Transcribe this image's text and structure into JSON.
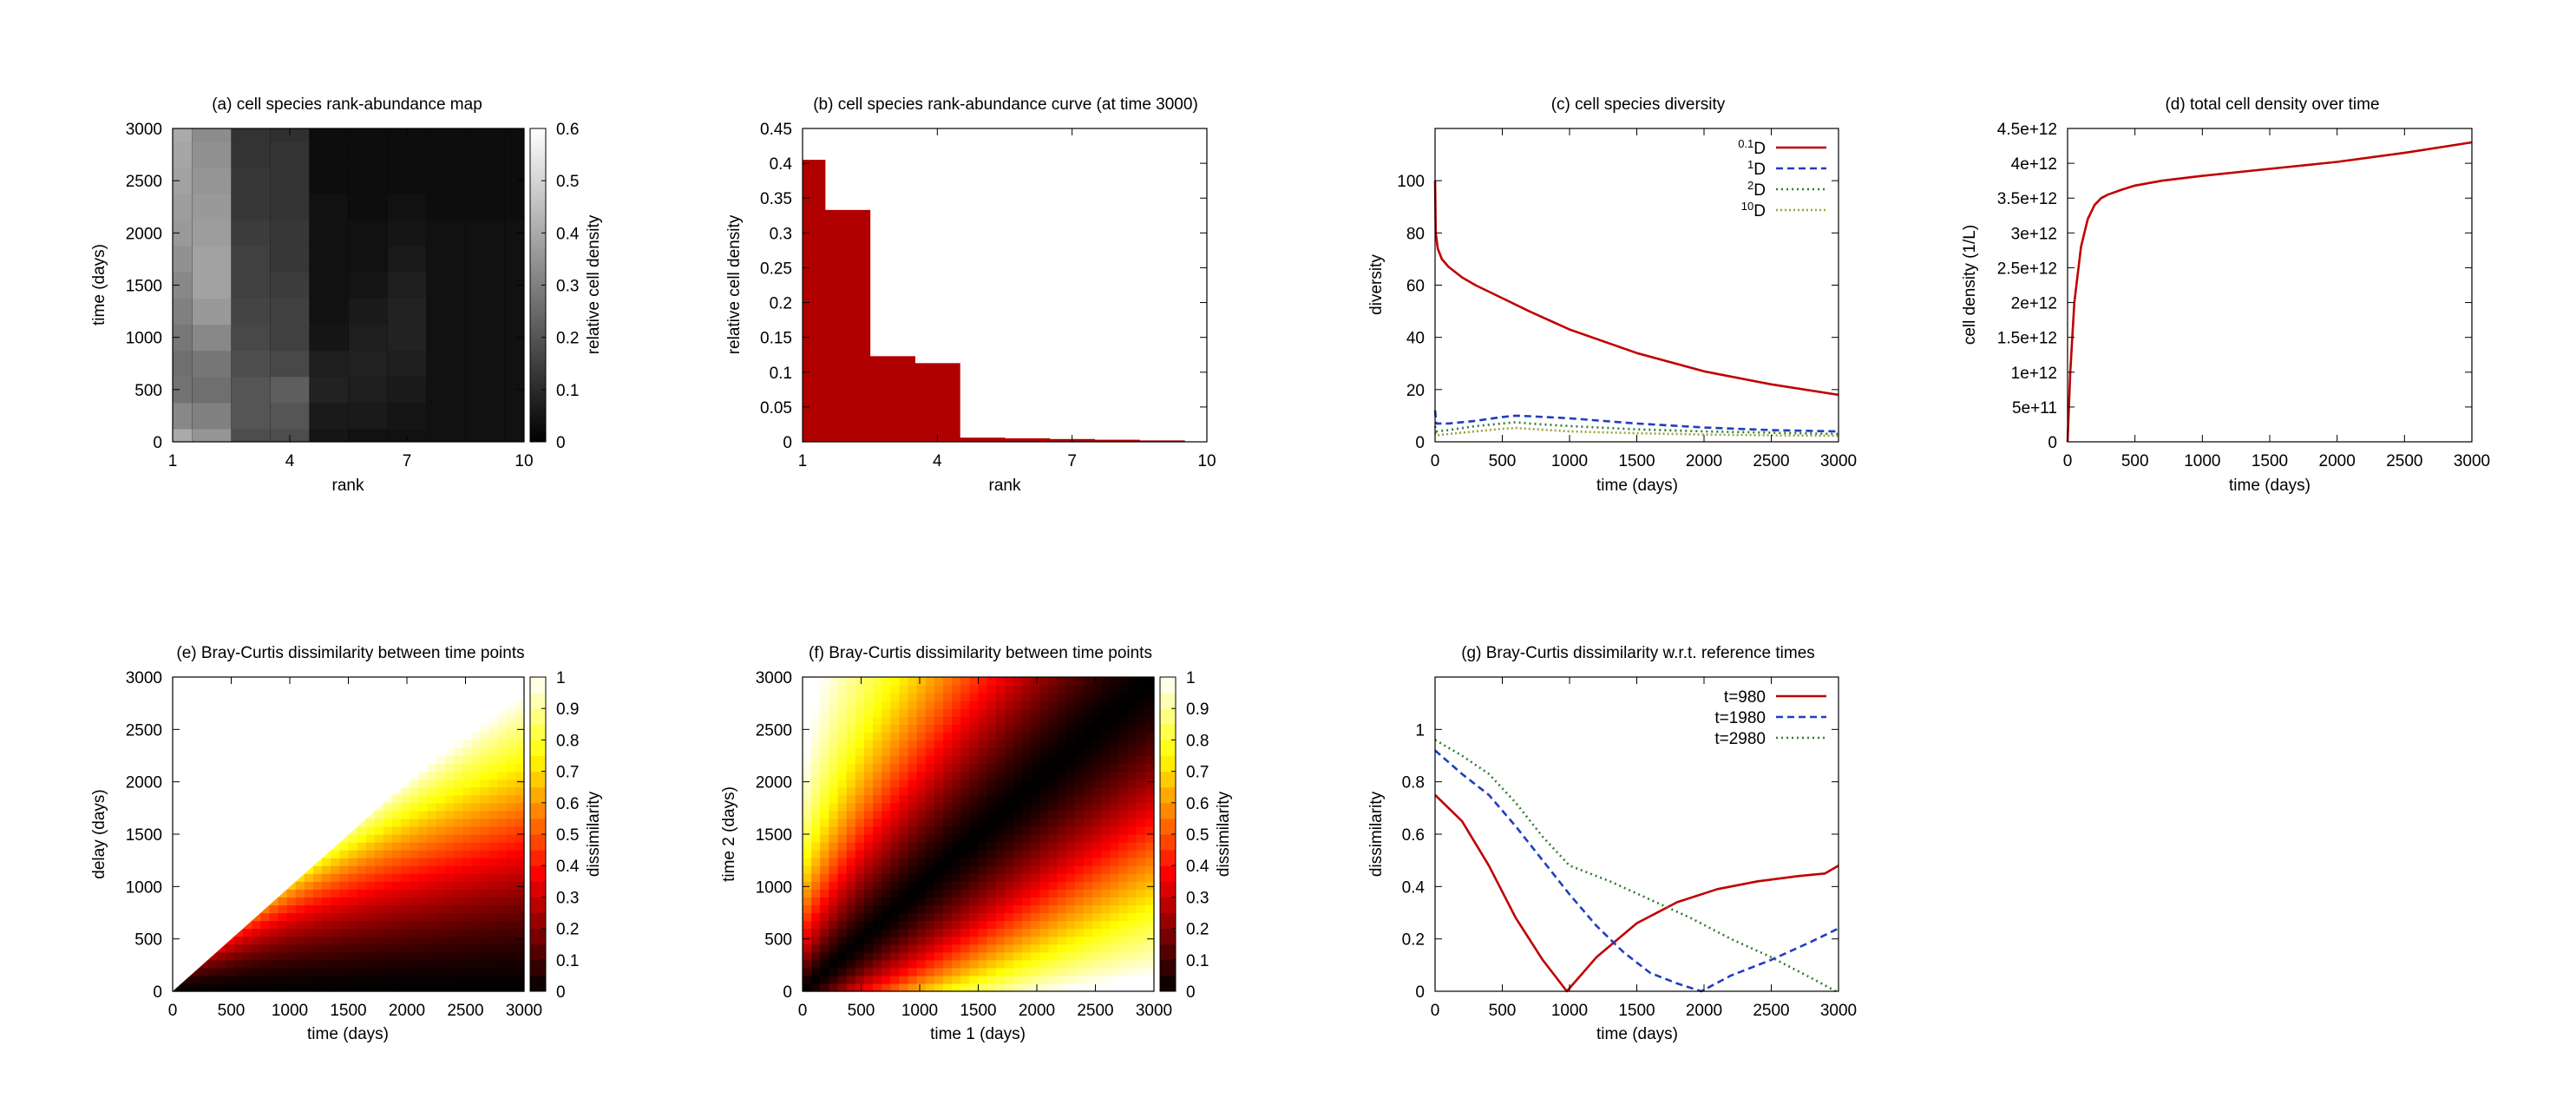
{
  "chart_data": [
    {
      "id": "a",
      "type": "heatmap",
      "title": "(a) cell species rank-abundance map",
      "xlabel": "rank",
      "ylabel": "time (days)",
      "colorbar_label": "relative cell density",
      "colormap": "gray",
      "xlim": [
        1,
        10
      ],
      "ylim": [
        0,
        3000
      ],
      "x_ticks": [
        1,
        4,
        7,
        10
      ],
      "y_ticks": [
        0,
        500,
        1000,
        1500,
        2000,
        2500,
        3000
      ],
      "clim": [
        0,
        0.6
      ],
      "colorbar_ticks": [
        0,
        0.1,
        0.2,
        0.3,
        0.4,
        0.5,
        0.6
      ],
      "time_rows": [
        0,
        250,
        500,
        750,
        1000,
        1250,
        1500,
        1750,
        2000,
        2250,
        2500,
        2750,
        3000
      ],
      "column_edges": [
        1,
        1.5,
        2.5,
        3.5,
        4.5,
        5.5,
        6.5,
        7.5,
        8.5,
        9.5,
        10
      ],
      "values": [
        [
          0.4,
          0.35,
          0.18,
          0.18,
          0.05,
          0.04,
          0.04,
          0.04,
          0.04,
          0.04
        ],
        [
          0.32,
          0.3,
          0.2,
          0.2,
          0.06,
          0.06,
          0.05,
          0.04,
          0.04,
          0.04
        ],
        [
          0.27,
          0.26,
          0.2,
          0.22,
          0.08,
          0.07,
          0.06,
          0.04,
          0.04,
          0.04
        ],
        [
          0.26,
          0.28,
          0.18,
          0.17,
          0.07,
          0.08,
          0.07,
          0.04,
          0.04,
          0.04
        ],
        [
          0.28,
          0.32,
          0.17,
          0.15,
          0.05,
          0.07,
          0.08,
          0.04,
          0.04,
          0.04
        ],
        [
          0.3,
          0.36,
          0.16,
          0.15,
          0.04,
          0.06,
          0.08,
          0.04,
          0.04,
          0.04
        ],
        [
          0.32,
          0.38,
          0.15,
          0.14,
          0.04,
          0.05,
          0.07,
          0.04,
          0.04,
          0.04
        ],
        [
          0.34,
          0.38,
          0.15,
          0.13,
          0.04,
          0.04,
          0.06,
          0.04,
          0.04,
          0.04
        ],
        [
          0.36,
          0.37,
          0.14,
          0.13,
          0.04,
          0.04,
          0.05,
          0.04,
          0.04,
          0.04
        ],
        [
          0.37,
          0.36,
          0.13,
          0.12,
          0.04,
          0.03,
          0.04,
          0.03,
          0.03,
          0.03
        ],
        [
          0.38,
          0.35,
          0.13,
          0.12,
          0.03,
          0.03,
          0.03,
          0.03,
          0.03,
          0.03
        ],
        [
          0.39,
          0.34,
          0.12,
          0.12,
          0.03,
          0.03,
          0.03,
          0.03,
          0.03,
          0.03
        ],
        [
          0.4,
          0.33,
          0.12,
          0.11,
          0.03,
          0.03,
          0.03,
          0.03,
          0.03,
          0.03
        ]
      ]
    },
    {
      "id": "b",
      "type": "bar",
      "title": "(b) cell species rank-abundance curve (at time 3000)",
      "xlabel": "rank",
      "ylabel": "relative cell density",
      "xlim": [
        1,
        10
      ],
      "ylim": [
        0,
        0.45
      ],
      "x_ticks": [
        1,
        4,
        7,
        10
      ],
      "y_ticks": [
        0,
        0.05,
        0.1,
        0.15,
        0.2,
        0.25,
        0.3,
        0.35,
        0.4,
        0.45
      ],
      "bar_color": "#b00000",
      "categories": [
        1,
        2,
        3,
        4,
        5,
        6,
        7,
        8,
        9
      ],
      "bar_edges": [
        1,
        1.5,
        2.5,
        3.5,
        4.5,
        5.5,
        6.5,
        7.5,
        8.5,
        9.5
      ],
      "values": [
        0.405,
        0.333,
        0.123,
        0.113,
        0.006,
        0.005,
        0.004,
        0.003,
        0.002
      ]
    },
    {
      "id": "c",
      "type": "line",
      "title": "(c) cell species diversity",
      "xlabel": "time (days)",
      "ylabel": "diversity",
      "xlim": [
        0,
        3000
      ],
      "ylim": [
        0,
        120
      ],
      "x_ticks": [
        0,
        500,
        1000,
        1500,
        2000,
        2500,
        3000
      ],
      "y_ticks": [
        0,
        20,
        40,
        60,
        80,
        100
      ],
      "legend_position": "top-right",
      "series": [
        {
          "label": "D",
          "sup": "0.1",
          "color": "#c00000",
          "dash": "",
          "x": [
            0,
            5,
            20,
            50,
            100,
            200,
            300,
            500,
            700,
            1000,
            1500,
            2000,
            2500,
            3000
          ],
          "y": [
            100,
            80,
            74,
            70,
            67,
            63,
            60,
            55,
            50,
            43,
            34,
            27,
            22,
            18
          ]
        },
        {
          "label": "D",
          "sup": "1",
          "color": "#1f3fbf",
          "dash": "8,5",
          "x": [
            0,
            10,
            100,
            300,
            500,
            600,
            700,
            1000,
            1500,
            2000,
            2500,
            3000
          ],
          "y": [
            12,
            7,
            7,
            8,
            9.5,
            10,
            9.8,
            9,
            7,
            5.5,
            4.5,
            4
          ]
        },
        {
          "label": "D",
          "sup": "2",
          "color": "#2e7d32",
          "dash": "2,4",
          "x": [
            0,
            10,
            100,
            300,
            500,
            600,
            700,
            1000,
            1500,
            2000,
            2500,
            3000
          ],
          "y": [
            6,
            4,
            4.5,
            6,
            7,
            7.5,
            7,
            6,
            4.8,
            4,
            3.5,
            3
          ]
        },
        {
          "label": "D",
          "sup": "10",
          "color": "#a0a040",
          "dash": "2,3",
          "x": [
            0,
            10,
            100,
            300,
            500,
            600,
            700,
            1000,
            1500,
            2000,
            2500,
            3000
          ],
          "y": [
            3.5,
            2.5,
            3,
            4,
            5,
            5.3,
            5,
            4,
            3.3,
            2.8,
            2.5,
            2.3
          ]
        }
      ]
    },
    {
      "id": "d",
      "type": "line",
      "title": "(d) total cell density over time",
      "xlabel": "time (days)",
      "ylabel": "cell density (1/L)",
      "xlim": [
        0,
        3000
      ],
      "ylim": [
        0,
        4500000000000.0
      ],
      "x_ticks": [
        0,
        500,
        1000,
        1500,
        2000,
        2500,
        3000
      ],
      "y_ticks": [
        0,
        500000000000.0,
        1000000000000.0,
        1500000000000.0,
        2000000000000.0,
        2500000000000.0,
        3000000000000.0,
        3500000000000.0,
        4000000000000.0,
        4500000000000.0
      ],
      "y_tick_labels": [
        "0",
        "5e+11",
        "1e+12",
        "1.5e+12",
        "2e+12",
        "2.5e+12",
        "3e+12",
        "3.5e+12",
        "4e+12",
        "4.5e+12"
      ],
      "series": [
        {
          "label": "total",
          "color": "#c00000",
          "x": [
            0,
            20,
            50,
            100,
            150,
            200,
            250,
            300,
            400,
            500,
            700,
            1000,
            1500,
            2000,
            2500,
            3000
          ],
          "y": [
            0,
            1000000000000.0,
            2000000000000.0,
            2800000000000.0,
            3200000000000.0,
            3400000000000.0,
            3500000000000.0,
            3550000000000.0,
            3620000000000.0,
            3680000000000.0,
            3750000000000.0,
            3820000000000.0,
            3920000000000.0,
            4020000000000.0,
            4150000000000.0,
            4300000000000.0
          ]
        }
      ]
    },
    {
      "id": "e",
      "type": "heatmap",
      "title": "(e) Bray-Curtis dissimilarity between time points",
      "xlabel": "time (days)",
      "ylabel": "delay (days)",
      "colorbar_label": "dissimilarity",
      "colormap": "hot",
      "xlim": [
        0,
        3000
      ],
      "ylim": [
        0,
        3000
      ],
      "x_ticks": [
        0,
        500,
        1000,
        1500,
        2000,
        2500,
        3000
      ],
      "y_ticks": [
        0,
        500,
        1000,
        1500,
        2000,
        2500,
        3000
      ],
      "clim": [
        0,
        1
      ],
      "colorbar_ticks": [
        0,
        0.1,
        0.2,
        0.3,
        0.4,
        0.5,
        0.6,
        0.7,
        0.8,
        0.9,
        1
      ],
      "region": "triangle delay <= time",
      "model": {
        "a": 1000,
        "b": 1500,
        "c": 1900
      }
    },
    {
      "id": "f",
      "type": "heatmap",
      "title": "(f) Bray-Curtis dissimilarity between time points",
      "xlabel": "time 1 (days)",
      "ylabel": "time 2 (days)",
      "colorbar_label": "dissimilarity",
      "colormap": "hot",
      "xlim": [
        0,
        3000
      ],
      "ylim": [
        0,
        3000
      ],
      "x_ticks": [
        0,
        500,
        1000,
        1500,
        2000,
        2500,
        3000
      ],
      "y_ticks": [
        0,
        500,
        1000,
        1500,
        2000,
        2500,
        3000
      ],
      "clim": [
        0,
        1
      ],
      "colorbar_ticks": [
        0,
        0.1,
        0.2,
        0.3,
        0.4,
        0.5,
        0.6,
        0.7,
        0.8,
        0.9,
        1
      ],
      "model": {
        "a": 1000,
        "b": 1500,
        "c": 1900
      }
    },
    {
      "id": "g",
      "type": "line",
      "title": "(g) Bray-Curtis dissimilarity w.r.t. reference times",
      "xlabel": "time (days)",
      "ylabel": "dissimilarity",
      "xlim": [
        0,
        3000
      ],
      "ylim": [
        0,
        1.2
      ],
      "x_ticks": [
        0,
        500,
        1000,
        1500,
        2000,
        2500,
        3000
      ],
      "y_ticks": [
        0,
        0.2,
        0.4,
        0.6,
        0.8,
        1
      ],
      "legend_position": "top-right",
      "series": [
        {
          "label": "t=980",
          "color": "#c00000",
          "dash": "",
          "x": [
            0,
            200,
            400,
            600,
            800,
            980,
            1200,
            1500,
            1800,
            2100,
            2400,
            2700,
            2900,
            3000
          ],
          "y": [
            0.75,
            0.65,
            0.48,
            0.28,
            0.12,
            0,
            0.13,
            0.26,
            0.34,
            0.39,
            0.42,
            0.44,
            0.45,
            0.48
          ]
        },
        {
          "label": "t=1980",
          "color": "#1f3fbf",
          "dash": "8,5",
          "x": [
            0,
            200,
            400,
            600,
            800,
            1000,
            1200,
            1400,
            1600,
            1800,
            1980,
            2200,
            2500,
            2800,
            3000
          ],
          "y": [
            0.92,
            0.83,
            0.75,
            0.63,
            0.5,
            0.37,
            0.25,
            0.15,
            0.07,
            0.03,
            0,
            0.06,
            0.12,
            0.19,
            0.24
          ]
        },
        {
          "label": "t=2980",
          "color": "#2e7d32",
          "dash": "2,4",
          "x": [
            0,
            200,
            400,
            600,
            800,
            1000,
            1300,
            1600,
            1900,
            2200,
            2500,
            2800,
            2980
          ],
          "y": [
            0.96,
            0.9,
            0.83,
            0.72,
            0.59,
            0.48,
            0.42,
            0.35,
            0.28,
            0.2,
            0.13,
            0.05,
            0
          ]
        }
      ]
    }
  ]
}
